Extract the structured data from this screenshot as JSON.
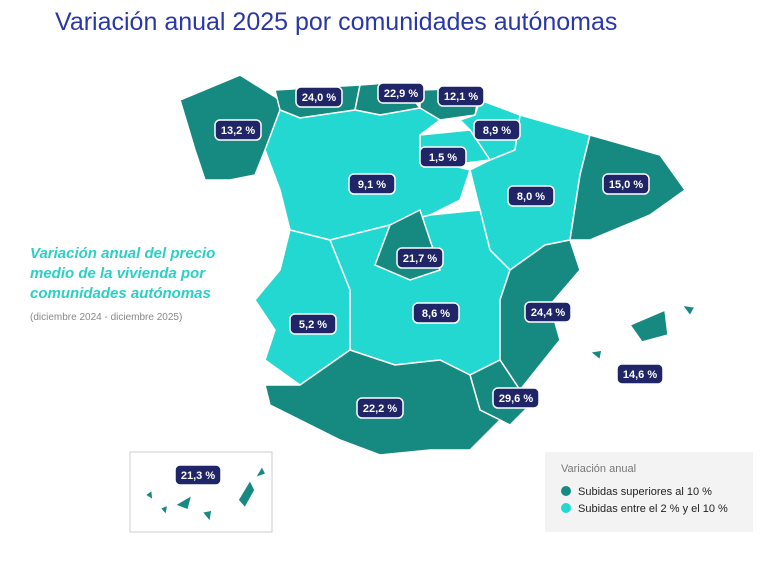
{
  "header": {
    "title": "Variación anual 2025 por comunidades autónomas"
  },
  "description": {
    "lines": [
      "Variación anual del precio",
      "medio de la vivienda por",
      "comunidades autónomas"
    ],
    "period": "(diciembre 2024 - diciembre 2025)"
  },
  "regions": [
    "13,2 %",
    "24,0 %",
    "22,9 %",
    "12,1 %",
    "8,9 %",
    "1,5 %",
    "9,1 %",
    "8,0 %",
    "15,0 %",
    "21,7 %",
    "24,4 %",
    "5,2 %",
    "8,6 %",
    "14,6 %",
    "22,2 %",
    "29,6 %",
    "21,3 %"
  ],
  "legend": {
    "title": "Variación anual",
    "items": [
      "Subidas superiores al 10 %",
      "Subidas entre el 2 %  y el 10 %"
    ]
  }
}
